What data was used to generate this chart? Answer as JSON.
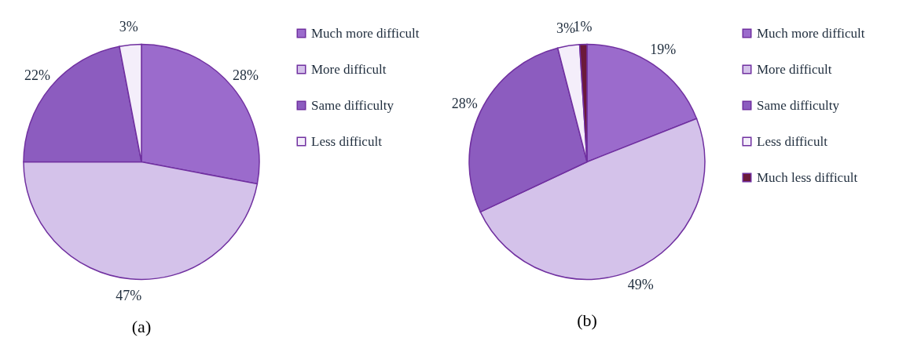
{
  "chart_data": [
    {
      "type": "pie",
      "categories": [
        "Much more difficult",
        "More difficult",
        "Same difficulty",
        "Less difficult"
      ],
      "values": [
        28,
        47,
        22,
        3
      ],
      "value_labels": [
        "28%",
        "47%",
        "22%",
        "3%"
      ],
      "colors": [
        "#9b6bcc",
        "#d4c2ea",
        "#8c5cbf",
        "#f4eefa"
      ],
      "legend": "right",
      "annotations": [
        "(a)"
      ]
    },
    {
      "type": "pie",
      "categories": [
        "Much more difficult",
        "More difficult",
        "Same difficulty",
        "Less difficult",
        "Much less difficult"
      ],
      "values": [
        19,
        49,
        28,
        3,
        1
      ],
      "value_labels": [
        "19%",
        "49%",
        "28%",
        "3%",
        "1%"
      ],
      "colors": [
        "#9b6bcc",
        "#d4c2ea",
        "#8c5cbf",
        "#f4eefa",
        "#6b1a3a"
      ],
      "legend": "right",
      "annotations": [
        "(b)"
      ]
    }
  ]
}
